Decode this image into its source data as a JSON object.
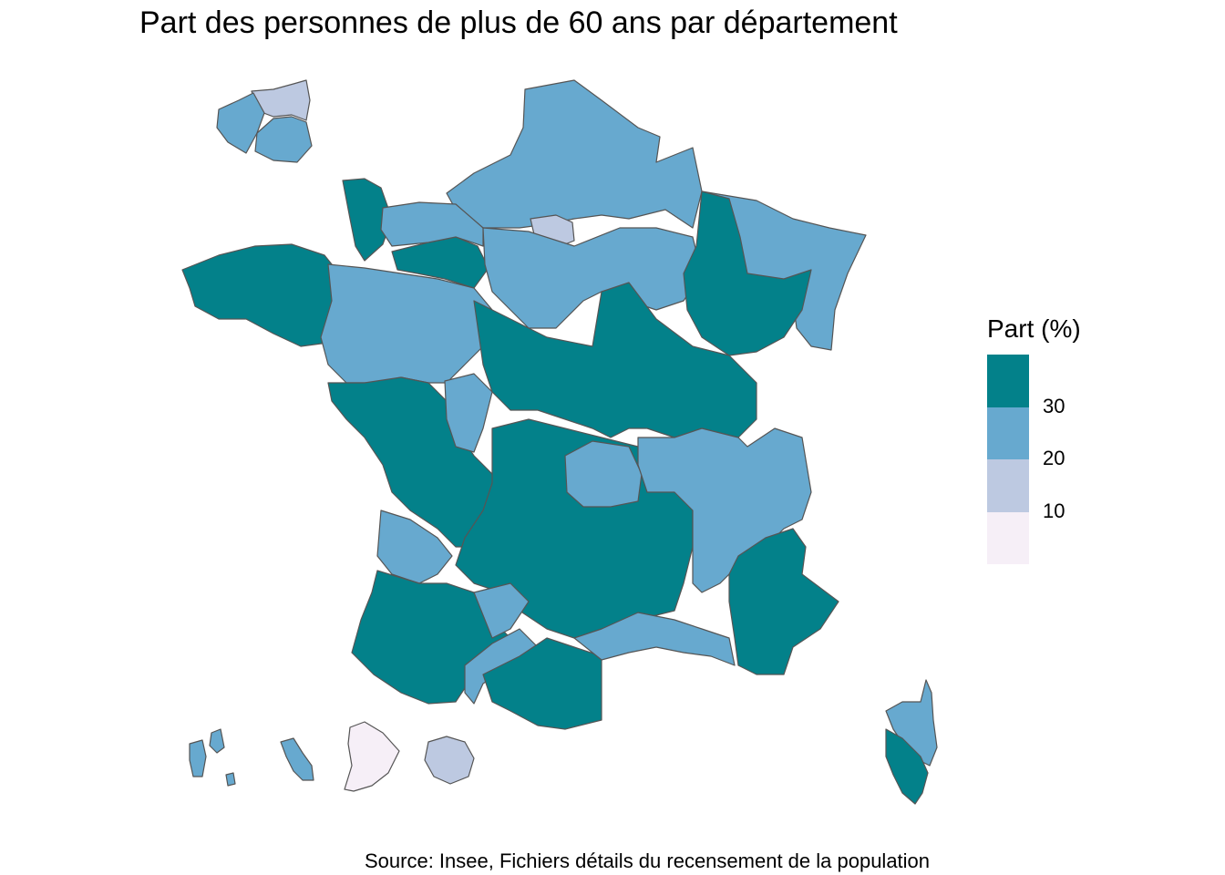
{
  "title": "Part des personnes de plus de 60 ans par département",
  "source": "Source: Insee, Fichiers détails du recensement de la population",
  "legend": {
    "title": "Part (%)",
    "classes": [
      {
        "label": "> 30",
        "color": "#03818a"
      },
      {
        "label": "20 – 30",
        "color": "#67a9cf"
      },
      {
        "label": "10 – 20",
        "color": "#bdc9e1"
      },
      {
        "label": "< 10",
        "color": "#f6eff7"
      }
    ],
    "ticks": [
      "30",
      "20",
      "10"
    ]
  },
  "palette": {
    "high": "#03818a",
    "mid": "#67a9cf",
    "low": "#bdc9e1",
    "lowest": "#f6eff7",
    "border": "#555555"
  }
}
